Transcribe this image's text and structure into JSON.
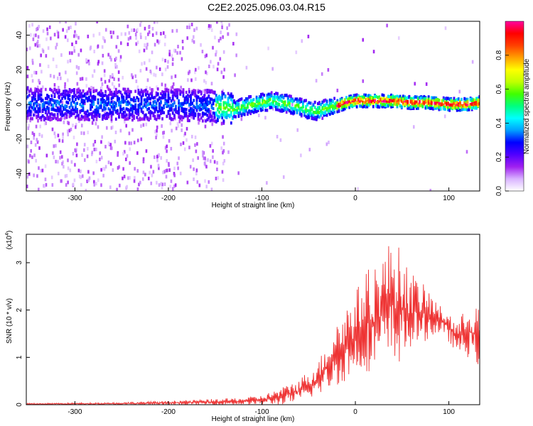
{
  "title": "C2E2.2025.096.03.04.R15",
  "chart_data": [
    {
      "type": "heatmap",
      "xlabel": "Height of straight line (km)",
      "ylabel": "Frequency (Hz)",
      "xlim": [
        -352,
        133
      ],
      "ylim": [
        -50,
        48
      ],
      "x_ticks": [
        -300,
        -200,
        -100,
        0,
        100
      ],
      "y_ticks": [
        -40,
        -20,
        0,
        20,
        40
      ],
      "ridge": {
        "description_points_x": [
          -350,
          -300,
          -250,
          -200,
          -150,
          -130,
          -110,
          -90,
          -70,
          -50,
          -40,
          -30,
          -20,
          -10,
          0,
          20,
          40,
          60,
          80,
          100,
          120,
          133
        ],
        "frequency_hz": [
          0,
          0,
          0,
          0,
          -1,
          -3,
          0,
          2,
          0,
          -3,
          -4,
          -2,
          -1,
          1,
          2,
          2,
          2,
          1,
          1,
          0,
          0,
          1
        ]
      },
      "colorbar": {
        "label": "Normalized spectral amplitude",
        "range": [
          0.0,
          1.0
        ],
        "ticks": [
          "0.0",
          "0.2",
          "0.4",
          "0.6",
          "0.8"
        ],
        "colormap": [
          "#ffffff",
          "#d9b3ff",
          "#a020f0",
          "#5000ff",
          "#0000ff",
          "#00a0ff",
          "#00ffff",
          "#00ff80",
          "#40ff00",
          "#c0ff00",
          "#ffff00",
          "#ffa000",
          "#ff4000",
          "#ff0000",
          "#ff00a0"
        ]
      }
    },
    {
      "type": "line",
      "xlabel": "Height of straight line (km)",
      "ylabel": "SNR (10 * v/v)",
      "multiplier_label": "(x10",
      "multiplier_exp": "4",
      "xlim": [
        -352,
        133
      ],
      "ylim": [
        0,
        3.6
      ],
      "x_ticks": [
        -300,
        -200,
        -100,
        0,
        100
      ],
      "y_ticks": [
        0,
        1,
        2,
        3
      ],
      "series_color": "#ee3333",
      "envelope": {
        "x": [
          -352,
          -250,
          -200,
          -150,
          -120,
          -100,
          -80,
          -60,
          -40,
          -20,
          0,
          10,
          20,
          30,
          40,
          50,
          60,
          70,
          80,
          90,
          100,
          110,
          120,
          133
        ],
        "min": [
          0,
          0,
          0,
          0,
          0,
          0,
          0,
          0.05,
          0.2,
          0.4,
          0.6,
          0.7,
          0.7,
          0.8,
          0.8,
          0.9,
          1.2,
          1.3,
          1.4,
          1.5,
          1.3,
          1.1,
          1.0,
          0.8
        ],
        "max": [
          0.03,
          0.05,
          0.08,
          0.12,
          0.15,
          0.2,
          0.35,
          0.55,
          0.9,
          1.8,
          2.4,
          2.8,
          3.0,
          3.2,
          3.6,
          3.2,
          2.8,
          2.6,
          2.4,
          2.1,
          2.0,
          1.7,
          2.2,
          2.1
        ]
      }
    }
  ]
}
